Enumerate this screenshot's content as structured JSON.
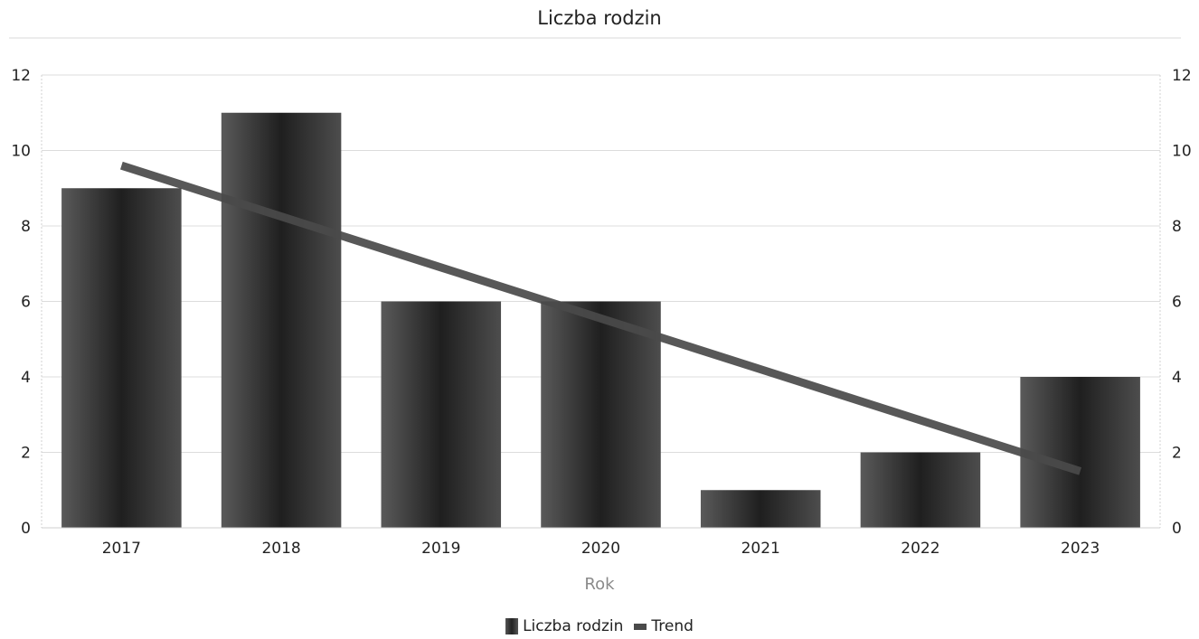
{
  "chart_data": {
    "type": "bar",
    "title": "Liczba rodzin",
    "xlabel": "Rok",
    "ylabel": "",
    "categories": [
      "2017",
      "2018",
      "2019",
      "2020",
      "2021",
      "2022",
      "2023"
    ],
    "series": [
      {
        "name": "Liczba rodzin",
        "type": "bar",
        "values": [
          9,
          11,
          6,
          6,
          1,
          2,
          4
        ],
        "color": "#262626"
      },
      {
        "name": "Trend",
        "type": "line",
        "values": [
          9.6,
          8.25,
          6.9,
          5.55,
          4.2,
          2.85,
          1.5
        ],
        "color": "#4a4a4a"
      }
    ],
    "ylim": [
      0,
      12
    ],
    "yticks": [
      0,
      2,
      4,
      6,
      8,
      10,
      12
    ],
    "secondary_yticks": [
      0,
      2,
      4,
      6,
      8,
      10,
      12
    ],
    "grid": true,
    "legend_position": "bottom"
  }
}
